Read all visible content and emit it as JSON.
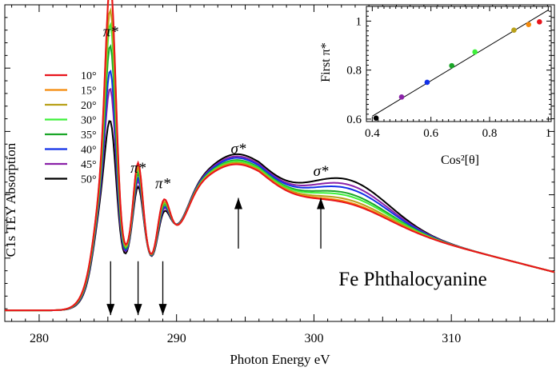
{
  "chart_data": [
    {
      "type": "line",
      "title": "",
      "xlabel": "Photon Energy eV",
      "ylabel": "C1s  TEY  Absorption",
      "xlim": [
        277.5,
        317.5
      ],
      "ylim": [
        0,
        1
      ],
      "x_ticks": [
        280,
        290,
        300,
        310
      ],
      "y_ticks_labeled": false,
      "grid": false,
      "legend_position": "left",
      "sample_label": "Fe Phthalocyanine",
      "peak_labels": [
        "π*",
        "π*",
        "π*",
        "σ*",
        "σ*"
      ],
      "annotations": [
        {
          "text": "π*",
          "x": 285.2,
          "y": 0.9
        },
        {
          "text": "π*",
          "x": 287.2,
          "y": 0.47
        },
        {
          "text": "π*",
          "x": 289.0,
          "y": 0.42
        },
        {
          "text": "σ*",
          "x": 294.5,
          "y": 0.53
        },
        {
          "text": "σ*",
          "x": 300.5,
          "y": 0.46
        }
      ],
      "arrows": [
        {
          "x": 285.2,
          "direction": "down",
          "y_from": 0.19,
          "y_to": 0.02
        },
        {
          "x": 287.2,
          "direction": "down",
          "y_from": 0.19,
          "y_to": 0.02
        },
        {
          "x": 289.0,
          "direction": "down",
          "y_from": 0.19,
          "y_to": 0.02
        },
        {
          "x": 294.5,
          "direction": "up",
          "y_from": 0.23,
          "y_to": 0.39
        },
        {
          "x": 300.5,
          "direction": "up",
          "y_from": 0.23,
          "y_to": 0.39
        }
      ],
      "series": [
        {
          "name": "10°",
          "color": "#e8141c",
          "pi_peak": 0.95,
          "sigma_level": 0.36
        },
        {
          "name": "15°",
          "color": "#f58a0a",
          "pi_peak": 0.94,
          "sigma_level": 0.365
        },
        {
          "name": "20°",
          "color": "#b8a018",
          "pi_peak": 0.87,
          "sigma_level": 0.375
        },
        {
          "name": "30°",
          "color": "#3ef03a",
          "pi_peak": 0.83,
          "sigma_level": 0.39
        },
        {
          "name": "35°",
          "color": "#1aa628",
          "pi_peak": 0.77,
          "sigma_level": 0.4
        },
        {
          "name": "40°",
          "color": "#1230e8",
          "pi_peak": 0.7,
          "sigma_level": 0.42
        },
        {
          "name": "45°",
          "color": "#8a22a8",
          "pi_peak": 0.65,
          "sigma_level": 0.435
        },
        {
          "name": "50°",
          "color": "#000000",
          "pi_peak": 0.56,
          "sigma_level": 0.455
        }
      ]
    },
    {
      "type": "scatter",
      "title": "",
      "xlabel": "Cos²[θ]",
      "ylabel": "First π*",
      "xlim": [
        0.38,
        1.01
      ],
      "ylim": [
        0.59,
        1.06
      ],
      "x_ticks": [
        0.4,
        0.6,
        0.8,
        1
      ],
      "y_ticks": [
        0.6,
        0.8,
        1
      ],
      "fit_line": {
        "x": [
          0.4,
          1.0
        ],
        "y": [
          0.612,
          1.045
        ]
      },
      "points": [
        {
          "x": 0.413,
          "y": 0.604,
          "color": "#000000"
        },
        {
          "x": 0.5,
          "y": 0.69,
          "color": "#8a22a8"
        },
        {
          "x": 0.587,
          "y": 0.75,
          "color": "#1230e8"
        },
        {
          "x": 0.671,
          "y": 0.818,
          "color": "#1aa628"
        },
        {
          "x": 0.75,
          "y": 0.874,
          "color": "#3ef03a"
        },
        {
          "x": 0.883,
          "y": 0.963,
          "color": "#b8a018"
        },
        {
          "x": 0.933,
          "y": 0.986,
          "color": "#f58a0a"
        },
        {
          "x": 0.97,
          "y": 0.997,
          "color": "#e8141c"
        }
      ]
    }
  ]
}
